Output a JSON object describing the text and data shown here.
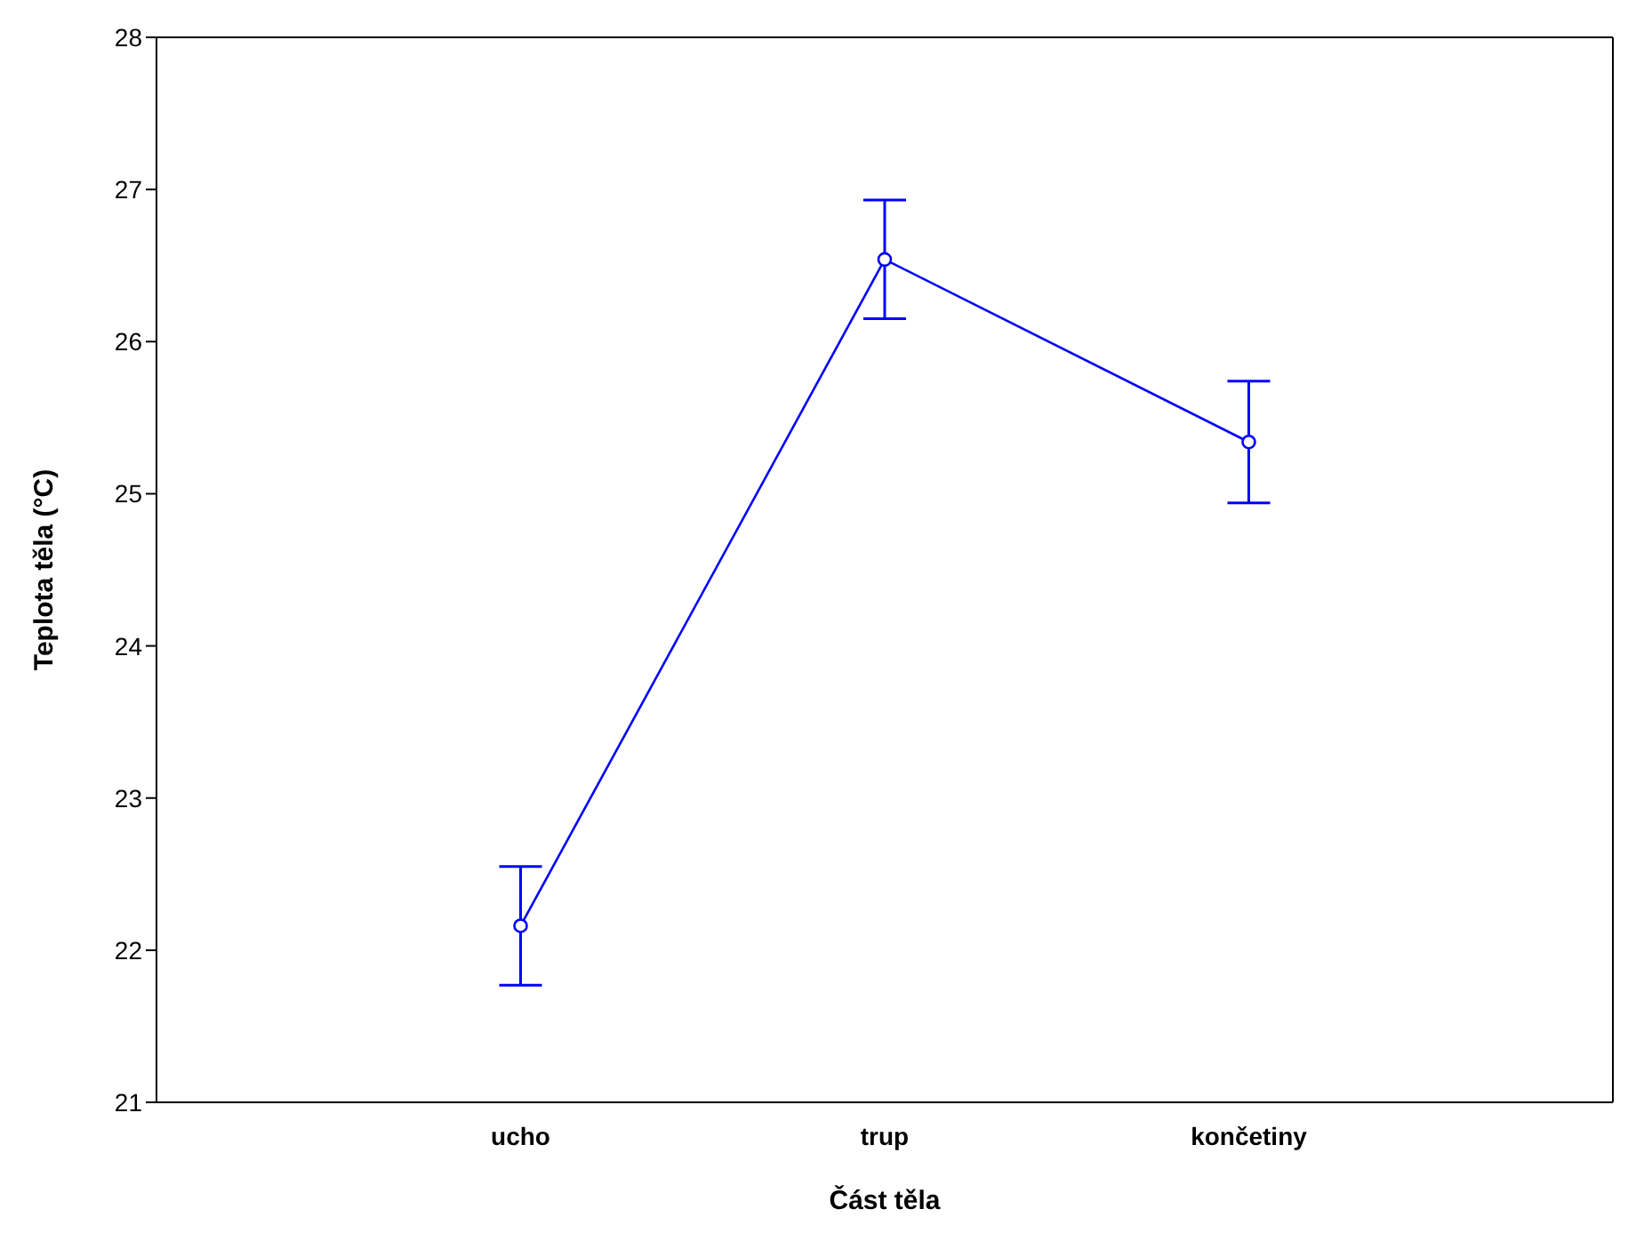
{
  "chart_data": {
    "type": "line",
    "xlabel": "Část těla",
    "ylabel": "Teplota těla (°C)",
    "categories": [
      "ucho",
      "trup",
      "končetiny"
    ],
    "series": [
      {
        "color": "#0000ff",
        "values": [
          22.16,
          26.54,
          25.34
        ],
        "errors": [
          0.39,
          0.39,
          0.4
        ]
      }
    ],
    "ylim": [
      21,
      28
    ],
    "yticks": [
      21,
      22,
      23,
      24,
      25,
      26,
      27,
      28
    ],
    "grid": false,
    "legend": false,
    "marker": "circle",
    "line_style": "solid"
  }
}
